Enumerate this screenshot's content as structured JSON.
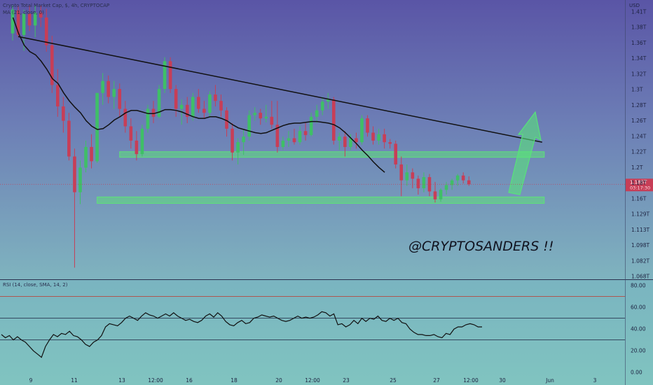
{
  "header": {
    "symbol_line": "Crypto Total Market Cap, $, 4h, CRYPTOCAP",
    "ma_line": "MA (21, close, 0)",
    "currency": "USD"
  },
  "rsi_header": "RSI (14, close, SMA, 14, 2)",
  "watermark": "@CRYPTOSANDERS !!",
  "price_tag": {
    "value": "1.185T",
    "countdown": "03:17:30"
  },
  "colors": {
    "up": "#3fbf67",
    "down": "#c73e57",
    "ma": "#111111",
    "trendline": "#111111",
    "zone": "#5fe07a",
    "arrow": "#58e27a",
    "rsi_line": "#111111",
    "rsi_band": "#1d2440",
    "rsi_upper": "#c0392b",
    "price_tag": "#c73e57"
  },
  "chart_data": [
    {
      "type": "candlestick",
      "title": "Crypto Total Market Cap, $, 4h, CRYPTOCAP",
      "y_unit": "USD",
      "ylim": [
        1.068,
        1.41
      ],
      "y_ticks": [
        "1.41T",
        "1.38T",
        "1.36T",
        "1.34T",
        "1.32T",
        "1.3T",
        "1.28T",
        "1.26T",
        "1.24T",
        "1.22T",
        "1.2T",
        "1.18T",
        "1.16T",
        "1.129T",
        "1.113T",
        "1.098T",
        "1.082T",
        "1.068T"
      ],
      "x_ticks": [
        "9",
        "11",
        "13",
        "12:00",
        "16",
        "18",
        "20",
        "12:00",
        "23",
        "25",
        "27",
        "12:00",
        "30",
        "Jun",
        "3"
      ],
      "last_price": 1.185,
      "ma_line": {
        "name": "MA (21, close, 0)",
        "values": [
          1.395,
          1.375,
          1.36,
          1.352,
          1.348,
          1.34,
          1.33,
          1.318,
          1.312,
          1.3,
          1.29,
          1.282,
          1.275,
          1.265,
          1.258,
          1.254,
          1.255,
          1.26,
          1.266,
          1.27,
          1.275,
          1.278,
          1.278,
          1.276,
          1.274,
          1.274,
          1.276,
          1.279,
          1.279,
          1.278,
          1.276,
          1.273,
          1.27,
          1.268,
          1.268,
          1.27,
          1.27,
          1.268,
          1.265,
          1.26,
          1.256,
          1.254,
          1.252,
          1.25,
          1.249,
          1.25,
          1.253,
          1.256,
          1.259,
          1.261,
          1.262,
          1.262,
          1.263,
          1.264,
          1.264,
          1.263,
          1.262,
          1.26,
          1.256,
          1.25,
          1.243,
          1.236,
          1.228,
          1.221,
          1.213,
          1.206,
          1.2
        ]
      },
      "trendline": {
        "start": [
          1,
          1.371
        ],
        "end": [
          94,
          1.238
        ]
      },
      "support_zones": [
        {
          "low": 1.219,
          "high": 1.226,
          "x_start": 19,
          "x_end": 94
        },
        {
          "low": 1.161,
          "high": 1.169,
          "x_start": 15,
          "x_end": 94
        }
      ],
      "candles": [
        {
          "o": 1.375,
          "h": 1.41,
          "l": 1.366,
          "c": 1.405
        },
        {
          "o": 1.404,
          "h": 1.41,
          "l": 1.37,
          "c": 1.373
        },
        {
          "o": 1.373,
          "h": 1.405,
          "l": 1.353,
          "c": 1.4
        },
        {
          "o": 1.4,
          "h": 1.41,
          "l": 1.378,
          "c": 1.385
        },
        {
          "o": 1.385,
          "h": 1.41,
          "l": 1.37,
          "c": 1.401
        },
        {
          "o": 1.401,
          "h": 1.41,
          "l": 1.383,
          "c": 1.395
        },
        {
          "o": 1.395,
          "h": 1.406,
          "l": 1.352,
          "c": 1.36
        },
        {
          "o": 1.36,
          "h": 1.372,
          "l": 1.3,
          "c": 1.31
        },
        {
          "o": 1.31,
          "h": 1.33,
          "l": 1.27,
          "c": 1.283
        },
        {
          "o": 1.283,
          "h": 1.295,
          "l": 1.25,
          "c": 1.265
        },
        {
          "o": 1.265,
          "h": 1.275,
          "l": 1.215,
          "c": 1.22
        },
        {
          "o": 1.22,
          "h": 1.23,
          "l": 1.08,
          "c": 1.175
        },
        {
          "o": 1.175,
          "h": 1.215,
          "l": 1.16,
          "c": 1.206
        },
        {
          "o": 1.206,
          "h": 1.24,
          "l": 1.2,
          "c": 1.232
        },
        {
          "o": 1.232,
          "h": 1.248,
          "l": 1.205,
          "c": 1.214
        },
        {
          "o": 1.214,
          "h": 1.3,
          "l": 1.212,
          "c": 1.3
        },
        {
          "o": 1.3,
          "h": 1.325,
          "l": 1.285,
          "c": 1.315
        },
        {
          "o": 1.315,
          "h": 1.322,
          "l": 1.287,
          "c": 1.295
        },
        {
          "o": 1.295,
          "h": 1.315,
          "l": 1.28,
          "c": 1.305
        },
        {
          "o": 1.305,
          "h": 1.312,
          "l": 1.27,
          "c": 1.28
        },
        {
          "o": 1.28,
          "h": 1.29,
          "l": 1.25,
          "c": 1.258
        },
        {
          "o": 1.258,
          "h": 1.268,
          "l": 1.23,
          "c": 1.24
        },
        {
          "o": 1.24,
          "h": 1.252,
          "l": 1.215,
          "c": 1.223
        },
        {
          "o": 1.223,
          "h": 1.26,
          "l": 1.22,
          "c": 1.255
        },
        {
          "o": 1.255,
          "h": 1.285,
          "l": 1.25,
          "c": 1.28
        },
        {
          "o": 1.28,
          "h": 1.29,
          "l": 1.262,
          "c": 1.27
        },
        {
          "o": 1.27,
          "h": 1.31,
          "l": 1.268,
          "c": 1.305
        },
        {
          "o": 1.305,
          "h": 1.345,
          "l": 1.3,
          "c": 1.34
        },
        {
          "o": 1.34,
          "h": 1.345,
          "l": 1.3,
          "c": 1.305
        },
        {
          "o": 1.305,
          "h": 1.31,
          "l": 1.27,
          "c": 1.28
        },
        {
          "o": 1.28,
          "h": 1.292,
          "l": 1.26,
          "c": 1.285
        },
        {
          "o": 1.285,
          "h": 1.295,
          "l": 1.262,
          "c": 1.27
        },
        {
          "o": 1.27,
          "h": 1.3,
          "l": 1.265,
          "c": 1.295
        },
        {
          "o": 1.295,
          "h": 1.305,
          "l": 1.275,
          "c": 1.28
        },
        {
          "o": 1.28,
          "h": 1.29,
          "l": 1.268,
          "c": 1.275
        },
        {
          "o": 1.275,
          "h": 1.302,
          "l": 1.27,
          "c": 1.298
        },
        {
          "o": 1.298,
          "h": 1.31,
          "l": 1.283,
          "c": 1.29
        },
        {
          "o": 1.29,
          "h": 1.298,
          "l": 1.27,
          "c": 1.278
        },
        {
          "o": 1.278,
          "h": 1.282,
          "l": 1.245,
          "c": 1.255
        },
        {
          "o": 1.255,
          "h": 1.262,
          "l": 1.215,
          "c": 1.225
        },
        {
          "o": 1.225,
          "h": 1.243,
          "l": 1.21,
          "c": 1.238
        },
        {
          "o": 1.238,
          "h": 1.255,
          "l": 1.222,
          "c": 1.245
        },
        {
          "o": 1.245,
          "h": 1.278,
          "l": 1.24,
          "c": 1.272
        },
        {
          "o": 1.272,
          "h": 1.282,
          "l": 1.265,
          "c": 1.275
        },
        {
          "o": 1.275,
          "h": 1.28,
          "l": 1.26,
          "c": 1.268
        },
        {
          "o": 1.268,
          "h": 1.285,
          "l": 1.263,
          "c": 1.27
        },
        {
          "o": 1.27,
          "h": 1.29,
          "l": 1.255,
          "c": 1.26
        },
        {
          "o": 1.26,
          "h": 1.29,
          "l": 1.225,
          "c": 1.232
        },
        {
          "o": 1.232,
          "h": 1.245,
          "l": 1.228,
          "c": 1.24
        },
        {
          "o": 1.24,
          "h": 1.252,
          "l": 1.232,
          "c": 1.243
        },
        {
          "o": 1.243,
          "h": 1.255,
          "l": 1.235,
          "c": 1.238
        },
        {
          "o": 1.238,
          "h": 1.258,
          "l": 1.235,
          "c": 1.252
        },
        {
          "o": 1.252,
          "h": 1.262,
          "l": 1.24,
          "c": 1.247
        },
        {
          "o": 1.247,
          "h": 1.275,
          "l": 1.245,
          "c": 1.27
        },
        {
          "o": 1.27,
          "h": 1.285,
          "l": 1.262,
          "c": 1.278
        },
        {
          "o": 1.278,
          "h": 1.295,
          "l": 1.272,
          "c": 1.289
        },
        {
          "o": 1.289,
          "h": 1.3,
          "l": 1.28,
          "c": 1.292
        },
        {
          "o": 1.292,
          "h": 1.295,
          "l": 1.235,
          "c": 1.24
        },
        {
          "o": 1.24,
          "h": 1.25,
          "l": 1.228,
          "c": 1.245
        },
        {
          "o": 1.245,
          "h": 1.252,
          "l": 1.22,
          "c": 1.232
        },
        {
          "o": 1.232,
          "h": 1.248,
          "l": 1.228,
          "c": 1.243
        },
        {
          "o": 1.243,
          "h": 1.25,
          "l": 1.23,
          "c": 1.238
        },
        {
          "o": 1.238,
          "h": 1.272,
          "l": 1.235,
          "c": 1.268
        },
        {
          "o": 1.268,
          "h": 1.272,
          "l": 1.245,
          "c": 1.25
        },
        {
          "o": 1.25,
          "h": 1.258,
          "l": 1.235,
          "c": 1.24
        },
        {
          "o": 1.24,
          "h": 1.255,
          "l": 1.235,
          "c": 1.248
        },
        {
          "o": 1.248,
          "h": 1.255,
          "l": 1.23,
          "c": 1.238
        },
        {
          "o": 1.238,
          "h": 1.242,
          "l": 1.23,
          "c": 1.236
        },
        {
          "o": 1.236,
          "h": 1.24,
          "l": 1.205,
          "c": 1.21
        },
        {
          "o": 1.21,
          "h": 1.22,
          "l": 1.17,
          "c": 1.19
        },
        {
          "o": 1.19,
          "h": 1.21,
          "l": 1.183,
          "c": 1.2
        },
        {
          "o": 1.2,
          "h": 1.205,
          "l": 1.18,
          "c": 1.192
        },
        {
          "o": 1.192,
          "h": 1.196,
          "l": 1.172,
          "c": 1.18
        },
        {
          "o": 1.18,
          "h": 1.2,
          "l": 1.175,
          "c": 1.194
        },
        {
          "o": 1.194,
          "h": 1.198,
          "l": 1.17,
          "c": 1.176
        },
        {
          "o": 1.176,
          "h": 1.188,
          "l": 1.162,
          "c": 1.166
        },
        {
          "o": 1.166,
          "h": 1.18,
          "l": 1.163,
          "c": 1.178
        },
        {
          "o": 1.178,
          "h": 1.188,
          "l": 1.172,
          "c": 1.184
        },
        {
          "o": 1.184,
          "h": 1.192,
          "l": 1.178,
          "c": 1.19
        },
        {
          "o": 1.19,
          "h": 1.198,
          "l": 1.183,
          "c": 1.196
        },
        {
          "o": 1.196,
          "h": 1.2,
          "l": 1.186,
          "c": 1.19
        },
        {
          "o": 1.19,
          "h": 1.195,
          "l": 1.183,
          "c": 1.185
        }
      ]
    },
    {
      "type": "line",
      "title": "RSI (14, close, SMA, 14, 2)",
      "ylim": [
        -5,
        80
      ],
      "y_ticks": [
        "80.00",
        "60.00",
        "40.00",
        "20.00",
        "0.00"
      ],
      "upper_line": 70,
      "band": [
        30,
        50
      ],
      "series": [
        {
          "values": [
            35,
            32,
            34,
            30,
            33,
            30,
            28,
            24,
            20,
            17,
            14,
            24,
            30,
            35,
            33,
            36,
            35,
            38,
            34,
            33,
            30,
            26,
            24,
            28,
            30,
            34,
            42,
            45,
            44,
            43,
            46,
            50,
            52,
            50,
            48,
            52,
            55,
            53,
            52,
            50,
            52,
            54,
            52,
            55,
            52,
            50,
            48,
            49,
            47,
            46,
            48,
            52,
            54,
            51,
            55,
            52,
            47,
            44,
            43,
            46,
            48,
            45,
            46,
            50,
            51,
            53,
            52,
            51,
            52,
            50,
            48,
            47,
            48,
            50,
            52,
            50,
            51,
            50,
            51,
            53,
            56,
            55,
            52,
            54,
            44,
            45,
            42,
            44,
            48,
            45,
            50,
            47,
            50,
            49,
            52,
            48,
            47,
            50,
            48,
            50,
            46,
            45,
            40,
            37,
            35,
            35,
            34,
            34,
            35,
            33,
            32,
            36,
            35,
            40,
            42,
            42,
            44,
            45,
            44,
            42,
            42
          ]
        }
      ]
    }
  ]
}
